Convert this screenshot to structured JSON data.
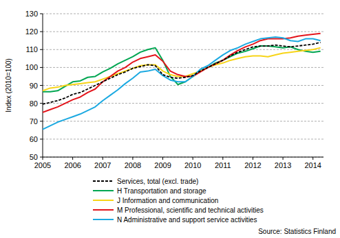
{
  "chart_data": {
    "type": "line",
    "y_label": "Index (2010=100)",
    "source": "Source: Statistics Finland",
    "x": [
      2005,
      2005.25,
      2005.5,
      2005.75,
      2006,
      2006.25,
      2006.5,
      2006.75,
      2007,
      2007.25,
      2007.5,
      2007.75,
      2008,
      2008.25,
      2008.5,
      2008.75,
      2009,
      2009.25,
      2009.5,
      2009.75,
      2010,
      2010.25,
      2010.5,
      2010.75,
      2011,
      2011.25,
      2011.5,
      2011.75,
      2012,
      2012.25,
      2012.5,
      2012.75,
      2013,
      2013.25,
      2013.5,
      2013.75,
      2014,
      2014.25
    ],
    "xlim": [
      2005,
      2014.35
    ],
    "xticks": [
      2005,
      2006,
      2007,
      2008,
      2009,
      2010,
      2011,
      2012,
      2013,
      2014
    ],
    "ylim": [
      50,
      130
    ],
    "yticks": [
      50,
      60,
      70,
      80,
      90,
      100,
      110,
      120,
      130
    ],
    "grid": true,
    "legend": "bottom",
    "series": [
      {
        "name": "Services, total (excl. trade)",
        "color": "#000000",
        "line_style": "dashed",
        "values": [
          79.5,
          80.5,
          81.5,
          83,
          85,
          86,
          88,
          90,
          92,
          94,
          96,
          97.5,
          99.5,
          100.5,
          101.5,
          101,
          96,
          94.5,
          94,
          94.5,
          95.5,
          98,
          100,
          102,
          104,
          106.5,
          108.5,
          110,
          111.5,
          112,
          112,
          112.5,
          112,
          111.5,
          112,
          112.5,
          113,
          114
        ]
      },
      {
        "name": "H Transportation and storage",
        "color": "#00a651",
        "line_style": "solid",
        "values": [
          86.5,
          86.5,
          87,
          89.5,
          92,
          92.5,
          94.5,
          95,
          97.5,
          99.5,
          102,
          104,
          106,
          108.5,
          110,
          111,
          104,
          95,
          90.5,
          92,
          95,
          98,
          100,
          102.5,
          104,
          106,
          108,
          109,
          110.5,
          112,
          112,
          111.5,
          111,
          111.5,
          110,
          109,
          108.5,
          109
        ]
      },
      {
        "name": "J Information and communication",
        "color": "#f7d417",
        "line_style": "solid",
        "values": [
          87,
          88.5,
          89,
          90,
          90.5,
          91,
          91.5,
          92,
          93.5,
          95,
          96.5,
          98,
          99.5,
          101,
          101.5,
          101.5,
          98,
          96,
          95,
          95,
          96.5,
          98,
          100,
          101.5,
          102.5,
          104,
          105,
          106,
          106.5,
          106.5,
          106,
          107,
          108,
          108.5,
          109,
          109.5,
          110,
          111
        ]
      },
      {
        "name": "M Professional, scientific and technical activities",
        "color": "#e3141b",
        "line_style": "solid",
        "values": [
          75,
          76.5,
          78,
          80,
          82,
          83.5,
          86,
          88,
          92,
          95,
          98,
          100,
          103,
          105,
          106,
          107,
          103.5,
          98,
          96,
          95,
          95,
          97.5,
          100,
          102,
          104,
          107,
          109.5,
          111.5,
          113,
          115,
          116,
          116,
          116,
          116.5,
          117.5,
          118,
          118.5,
          119
        ]
      },
      {
        "name": "N Administrative and support service activities",
        "color": "#1ba9e1",
        "line_style": "solid",
        "values": [
          65.5,
          67.5,
          69.5,
          71,
          72.5,
          74,
          76,
          78,
          81.5,
          84.5,
          87.5,
          91,
          94,
          97.5,
          98,
          99,
          95.5,
          93,
          92,
          92,
          95,
          99,
          101,
          104,
          107,
          109.5,
          111,
          113,
          114.5,
          116,
          116.5,
          117,
          116.5,
          115,
          114.5,
          116,
          116,
          115
        ]
      }
    ]
  }
}
